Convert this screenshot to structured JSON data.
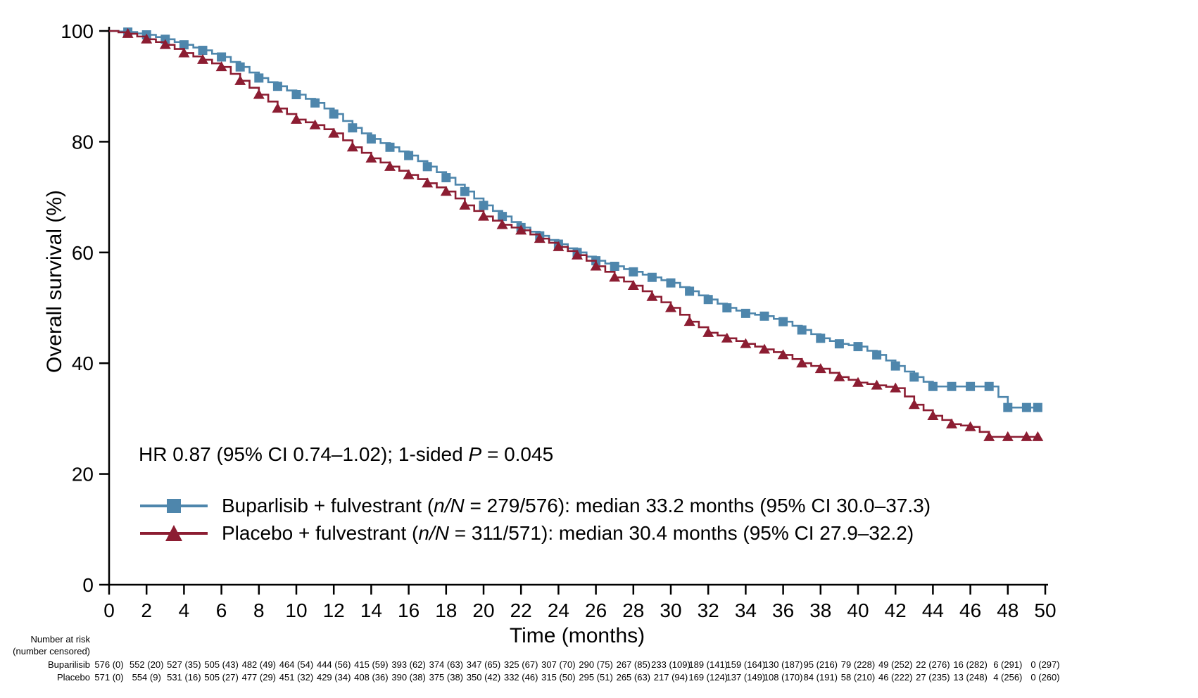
{
  "figure": {
    "annotation": {
      "pre": "HR 0.87 (95% CI 0.74–1.02); 1-sided ",
      "italic": "P",
      "post": " = 0.045"
    },
    "legend": [
      {
        "id": "buparlisib",
        "pre": "Buparlisib + fulvestrant (",
        "italic": "n/N",
        "post": " = 279/576): median 33.2 months (95% CI 30.0–37.3)",
        "color": "#4e86ac",
        "marker": "square"
      },
      {
        "id": "placebo",
        "pre": "Placebo + fulvestrant (",
        "italic": "n/N",
        "post": " = 311/571): median 30.4 months (95% CI 27.9–32.2)",
        "color": "#8c1d32",
        "marker": "triangle"
      }
    ],
    "colors": {
      "buparlisib_blue": "#4e86ac",
      "placebo_red": "#8c1d32",
      "axis_black": "#000000"
    }
  },
  "chart_data": {
    "type": "line",
    "subtype": "kaplan-meier-step",
    "title": "",
    "xlabel": "Time (months)",
    "ylabel": "Overall survival (%)",
    "xlim": [
      0,
      50
    ],
    "ylim": [
      0,
      100
    ],
    "xticks": [
      0,
      2,
      4,
      6,
      8,
      10,
      12,
      14,
      16,
      18,
      20,
      22,
      24,
      26,
      28,
      30,
      32,
      34,
      36,
      38,
      40,
      42,
      44,
      46,
      48,
      50
    ],
    "yticks": [
      0,
      20,
      40,
      60,
      80,
      100
    ],
    "grid": false,
    "legend_position": "lower-left-inside",
    "annotation_text": "HR 0.87 (95% CI 0.74–1.02); 1-sided P = 0.045",
    "series": [
      {
        "name": "Buparlisib + fulvestrant",
        "n_over_N": "279/576",
        "median_months": 33.2,
        "ci_95": "30.0–37.3",
        "color": "#4e86ac",
        "marker": "square",
        "x": [
          0,
          1,
          2,
          3,
          4,
          5,
          6,
          7,
          8,
          9,
          10,
          11,
          12,
          13,
          14,
          15,
          16,
          17,
          18,
          19,
          20,
          21,
          22,
          23,
          24,
          25,
          26,
          27,
          28,
          29,
          30,
          31,
          32,
          33,
          34,
          35,
          36,
          37,
          38,
          39,
          40,
          41,
          42,
          43,
          44,
          45,
          46,
          47,
          48,
          49,
          49.6
        ],
        "values": [
          100,
          99.8,
          99.3,
          98.5,
          97.5,
          96.5,
          95.3,
          93.5,
          91.5,
          90,
          88.5,
          87,
          85,
          82.5,
          80.5,
          79,
          77.5,
          75.5,
          73.5,
          71,
          68.5,
          66.5,
          64.5,
          63,
          61.5,
          60,
          58.5,
          57.5,
          56.5,
          55.5,
          54.5,
          53,
          51.5,
          50,
          49,
          48.5,
          47.5,
          46,
          44.5,
          43.5,
          43,
          41.5,
          39.5,
          37.5,
          35.8,
          35.8,
          35.8,
          35.8,
          32,
          32,
          32
        ]
      },
      {
        "name": "Placebo + fulvestrant",
        "n_over_N": "311/571",
        "median_months": 30.4,
        "ci_95": "27.9–32.2",
        "color": "#8c1d32",
        "marker": "triangle",
        "x": [
          0,
          1,
          2,
          3,
          4,
          5,
          6,
          7,
          8,
          9,
          10,
          11,
          12,
          13,
          14,
          15,
          16,
          17,
          18,
          19,
          20,
          21,
          22,
          23,
          24,
          25,
          26,
          27,
          28,
          29,
          30,
          31,
          32,
          33,
          34,
          35,
          36,
          37,
          38,
          39,
          40,
          41,
          42,
          43,
          44,
          45,
          46,
          47,
          48,
          49,
          49.6
        ],
        "values": [
          100,
          99.5,
          98.5,
          97.5,
          96,
          94.8,
          93.5,
          91,
          88.5,
          86,
          84,
          83,
          81.5,
          79,
          77,
          75.5,
          74,
          72.5,
          71,
          68.5,
          66.5,
          65,
          64,
          62.5,
          61,
          59.5,
          57.5,
          55.5,
          54,
          52,
          50,
          47.5,
          45.5,
          44.5,
          43.5,
          42.5,
          41.5,
          40,
          39,
          37.5,
          36.5,
          36,
          35.5,
          32.5,
          30.5,
          29,
          28.5,
          26.7,
          26.7,
          26.7,
          26.7
        ]
      }
    ]
  },
  "risk_table": {
    "header_line1": "Number at risk",
    "header_line2": "(number censored)",
    "time_points": [
      0,
      2,
      4,
      6,
      8,
      10,
      12,
      14,
      16,
      18,
      20,
      22,
      24,
      26,
      28,
      30,
      32,
      34,
      36,
      38,
      40,
      42,
      44,
      46,
      48,
      50
    ],
    "rows": [
      {
        "label": "Buparilisib",
        "values": [
          "576 (0)",
          "552 (20)",
          "527 (35)",
          "505 (43)",
          "482 (49)",
          "464 (54)",
          "444 (56)",
          "415 (59)",
          "393 (62)",
          "374 (63)",
          "347 (65)",
          "325 (67)",
          "307 (70)",
          "290 (75)",
          "267 (85)",
          "233 (109)",
          "189 (141)",
          "159 (164)",
          "130 (187)",
          "95 (216)",
          "79 (228)",
          "49 (252)",
          "22 (276)",
          "16 (282)",
          "6 (291)",
          "0 (297)"
        ]
      },
      {
        "label": "Placebo",
        "values": [
          "571 (0)",
          "554 (9)",
          "531 (16)",
          "505 (27)",
          "477 (29)",
          "451 (32)",
          "429 (34)",
          "408 (36)",
          "390 (38)",
          "375 (38)",
          "350 (42)",
          "332 (46)",
          "315 (50)",
          "295 (51)",
          "265 (63)",
          "217 (94)",
          "169 (124)",
          "137 (149)",
          "108 (170)",
          "84 (191)",
          "58 (210)",
          "46 (222)",
          "27 (235)",
          "13 (248)",
          "4 (256)",
          "0 (260)"
        ]
      }
    ]
  }
}
